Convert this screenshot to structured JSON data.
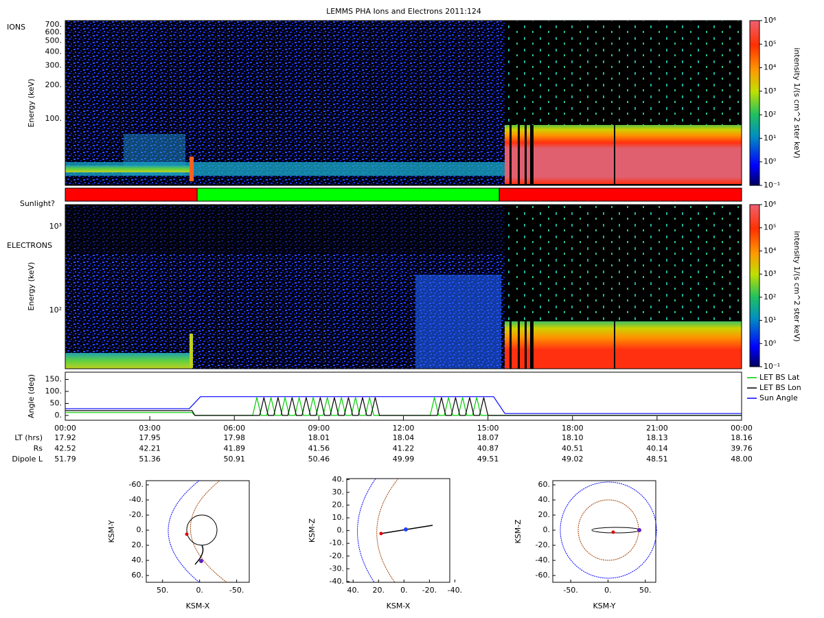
{
  "title": "LEMMS PHA Ions and Electrons  2011:124",
  "ions": {
    "name": "IONS",
    "y_label": "Energy (keV)",
    "log": true,
    "ylim": [
      25.2,
      762
    ],
    "yticks": [
      {
        "value": 100,
        "label": "100."
      },
      {
        "value": 200,
        "label": "200."
      },
      {
        "value": 300,
        "label": "300."
      },
      {
        "value": 400,
        "label": "400."
      },
      {
        "value": 500,
        "label": "500."
      },
      {
        "value": 600,
        "label": "600."
      },
      {
        "value": 700,
        "label": "700."
      }
    ]
  },
  "sunlight": {
    "label": "Sunlight?",
    "xlim": [
      0,
      24
    ],
    "segments": [
      {
        "start": 0,
        "end": 4.68,
        "color": "#ff0000"
      },
      {
        "start": 4.68,
        "end": 15.4,
        "color": "#00ff00"
      },
      {
        "start": 15.4,
        "end": 24,
        "color": "#ff0000"
      }
    ]
  },
  "electrons": {
    "name": "ELECTRONS",
    "y_label": "Energy (keV)",
    "log": true,
    "ylim": [
      20.1,
      1830
    ],
    "yticks": [
      {
        "value": 100,
        "label": "10²"
      },
      {
        "value": 1000,
        "label": "10³"
      }
    ]
  },
  "colorbar": {
    "label": "intensity 1/(s cm^2 ster keV)",
    "log": true,
    "ylim": [
      0.1,
      1000000
    ],
    "ticks": [
      {
        "value": 0.1,
        "label": "10⁻¹"
      },
      {
        "value": 1,
        "label": "10⁰"
      },
      {
        "value": 10,
        "label": "10¹"
      },
      {
        "value": 100,
        "label": "10²"
      },
      {
        "value": 1000,
        "label": "10³"
      },
      {
        "value": 10000,
        "label": "10⁴"
      },
      {
        "value": 100000,
        "label": "10⁵"
      },
      {
        "value": 1000000,
        "label": "10⁶"
      }
    ]
  },
  "angles": {
    "type": "line",
    "y_label": "Angle (deg)",
    "xlim": [
      0,
      24
    ],
    "ylim": [
      -20,
      180
    ],
    "yticks": [
      {
        "value": 0,
        "label": "0."
      },
      {
        "value": 50,
        "label": "50."
      },
      {
        "value": 100,
        "label": "100."
      },
      {
        "value": 150,
        "label": "150."
      }
    ],
    "xticks": [
      {
        "value": 0,
        "label": "00:00"
      },
      {
        "value": 3,
        "label": "03:00"
      },
      {
        "value": 6,
        "label": "06:00"
      },
      {
        "value": 9,
        "label": "09:00"
      },
      {
        "value": 12,
        "label": "12:00"
      },
      {
        "value": 15,
        "label": "15:00"
      },
      {
        "value": 18,
        "label": "18:00"
      },
      {
        "value": 21,
        "label": "21:00"
      },
      {
        "value": 24,
        "label": "00:00"
      }
    ],
    "legend": "right",
    "series": [
      {
        "name": "LET BS Lat",
        "color": "#00cc00",
        "x": [
          0,
          4.5,
          4.6,
          6.65,
          6.8,
          6.95,
          7.15,
          7.3,
          7.45,
          7.65,
          7.8,
          7.95,
          8.15,
          8.3,
          8.45,
          8.65,
          8.8,
          8.95,
          9.15,
          9.3,
          9.45,
          9.65,
          9.8,
          9.95,
          10.15,
          10.3,
          10.45,
          10.65,
          10.8,
          10.95,
          12.95,
          13.1,
          13.25,
          13.45,
          13.6,
          13.75,
          13.95,
          14.1,
          14.25,
          14.45,
          14.6,
          14.75,
          24
        ],
        "values": [
          12,
          12,
          0,
          0,
          75,
          0,
          0,
          75,
          0,
          0,
          75,
          0,
          0,
          75,
          0,
          0,
          75,
          0,
          0,
          75,
          0,
          0,
          75,
          0,
          0,
          75,
          0,
          0,
          75,
          0,
          0,
          75,
          0,
          0,
          75,
          0,
          0,
          75,
          0,
          0,
          75,
          0,
          0
        ]
      },
      {
        "name": "LET BS Lon",
        "color": "#000000",
        "x": [
          0,
          4.5,
          4.6,
          6.9,
          7.05,
          7.2,
          7.4,
          7.55,
          7.7,
          7.9,
          8.05,
          8.2,
          8.4,
          8.55,
          8.7,
          8.9,
          9.05,
          9.2,
          9.4,
          9.55,
          9.7,
          9.9,
          10.05,
          10.2,
          10.4,
          10.55,
          10.7,
          10.85,
          11.0,
          11.15,
          13.2,
          13.35,
          13.5,
          13.7,
          13.85,
          14.0,
          14.2,
          14.35,
          14.5,
          14.7,
          14.85,
          15.0,
          24
        ],
        "values": [
          20,
          20,
          0,
          0,
          75,
          0,
          0,
          75,
          0,
          0,
          75,
          0,
          0,
          75,
          0,
          0,
          75,
          0,
          0,
          75,
          0,
          0,
          75,
          0,
          0,
          75,
          0,
          0,
          75,
          0,
          0,
          75,
          0,
          0,
          75,
          0,
          0,
          75,
          0,
          0,
          75,
          0,
          0
        ]
      },
      {
        "name": "Sun Angle",
        "color": "#0000ff",
        "x": [
          0,
          4.4,
          4.8,
          15.2,
          15.6,
          24
        ],
        "values": [
          28,
          28,
          78,
          78,
          8,
          8
        ]
      }
    ]
  },
  "ephemeris": {
    "rows": [
      {
        "name": "LT (hrs)",
        "values": [
          "17.92",
          "17.95",
          "17.98",
          "18.01",
          "18.04",
          "18.07",
          "18.10",
          "18.13",
          "18.16"
        ]
      },
      {
        "name": "Rs",
        "values": [
          "42.52",
          "42.21",
          "41.89",
          "41.56",
          "41.22",
          "40.87",
          "40.51",
          "40.14",
          "39.76"
        ]
      },
      {
        "name": "Dipole L",
        "values": [
          "51.79",
          "51.36",
          "50.91",
          "50.46",
          "49.99",
          "49.51",
          "49.02",
          "48.51",
          "48.00"
        ]
      }
    ]
  },
  "orbits": [
    {
      "x_label": "KSM-X",
      "y_label": "KSM-Y",
      "xlim": [
        72,
        -67
      ],
      "ylim": [
        69,
        -65.5
      ],
      "xticks": [
        {
          "value": 50,
          "label": "50."
        },
        {
          "value": 0,
          "label": "0."
        },
        {
          "value": -50,
          "label": "-50."
        }
      ],
      "yticks": [
        {
          "value": -60,
          "label": "-60."
        },
        {
          "value": -40,
          "label": "-40."
        },
        {
          "value": -20,
          "label": "-20."
        },
        {
          "value": 0,
          "label": "0."
        },
        {
          "value": 20,
          "label": "20."
        },
        {
          "value": 40,
          "label": "40."
        },
        {
          "value": 60,
          "label": "60."
        }
      ]
    },
    {
      "x_label": "KSM-X",
      "y_label": "KSM-Z",
      "xlim": [
        45,
        -36
      ],
      "ylim": [
        -40.6,
        40.8
      ],
      "xticks": [
        {
          "value": 40,
          "label": "40."
        },
        {
          "value": 20,
          "label": "20."
        },
        {
          "value": 0,
          "label": "0."
        },
        {
          "value": -20,
          "label": "-20."
        },
        {
          "value": -40,
          "label": "-40."
        }
      ],
      "yticks": [
        {
          "value": 40,
          "label": "40."
        },
        {
          "value": 30,
          "label": "30."
        },
        {
          "value": 20,
          "label": "20."
        },
        {
          "value": 10,
          "label": "10."
        },
        {
          "value": 0,
          "label": "0."
        },
        {
          "value": -10,
          "label": "-10."
        },
        {
          "value": -20,
          "label": "-20."
        },
        {
          "value": -30,
          "label": "-30."
        },
        {
          "value": -40,
          "label": "-40."
        }
      ]
    },
    {
      "x_label": "KSM-Y",
      "y_label": "KSM-Z",
      "xlim": [
        -74,
        64
      ],
      "ylim": [
        -69,
        65.5
      ],
      "xticks": [
        {
          "value": -50,
          "label": "-50."
        },
        {
          "value": 0,
          "label": "0."
        },
        {
          "value": 50,
          "label": "50."
        }
      ],
      "yticks": [
        {
          "value": 60,
          "label": "60."
        },
        {
          "value": 40,
          "label": "40."
        },
        {
          "value": 20,
          "label": "20."
        },
        {
          "value": 0,
          "label": "0."
        },
        {
          "value": -20,
          "label": "-20."
        },
        {
          "value": -40,
          "label": "-40."
        },
        {
          "value": -60,
          "label": "-60."
        }
      ]
    }
  ]
}
